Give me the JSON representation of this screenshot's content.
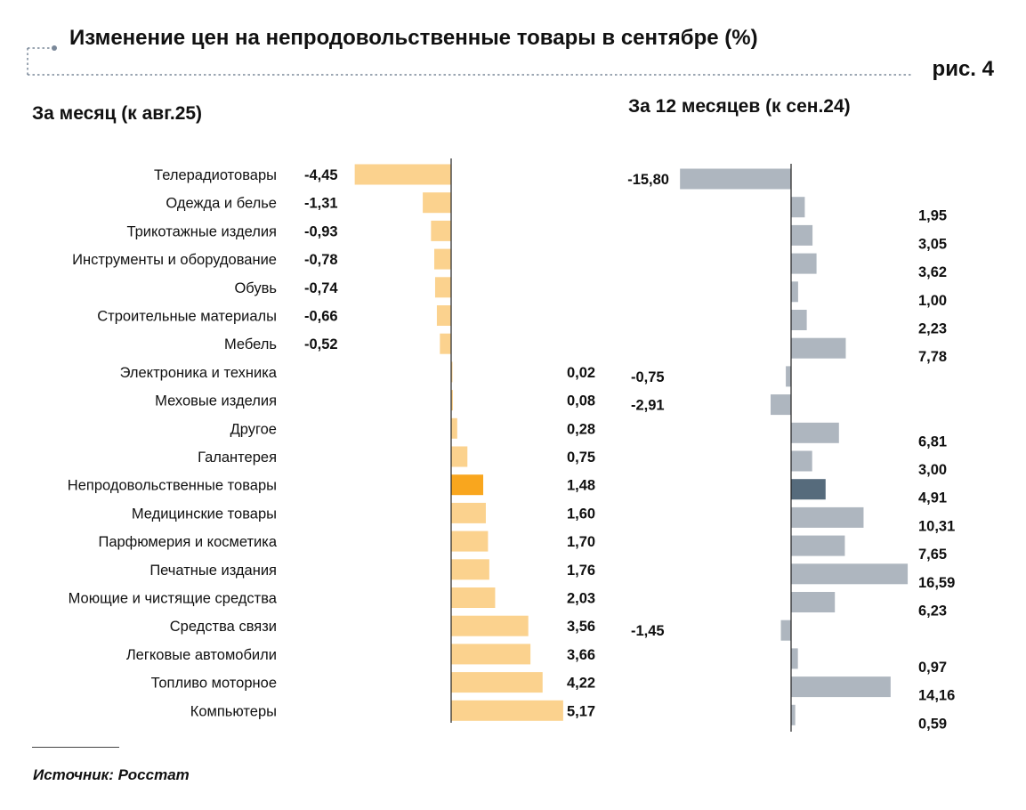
{
  "header": {
    "title": "Изменение цен на непродовольственные товары в сентябре (%)",
    "figure_label": "рис. 4"
  },
  "colors": {
    "month_bar": "#fbd28e",
    "month_highlight": "#f9a61e",
    "year_bar": "#aeb6bf",
    "year_highlight": "#566b7c",
    "frame_dots": "#7a8899"
  },
  "chart_data": [
    {
      "type": "bar",
      "orientation": "horizontal",
      "title": "За месяц (к авг.25)",
      "categories": [
        "Телерадиотовары",
        "Одежда и белье",
        "Трикотажные изделия",
        "Инструменты и оборудование",
        "Обувь",
        "Строительные материалы",
        "Мебель",
        "Электроника и техника",
        "Меховые изделия",
        "Другое",
        "Галантерея",
        "Непродовольственные товары",
        "Медицинские товары",
        "Парфюмерия и косметика",
        "Печатные издания",
        "Моющие и чистящие средства",
        "Средства связи",
        "Легковые автомобили",
        "Топливо моторное",
        "Компьютеры"
      ],
      "values": [
        -4.45,
        -1.31,
        -0.93,
        -0.78,
        -0.74,
        -0.66,
        -0.52,
        0.02,
        0.08,
        0.28,
        0.75,
        1.48,
        1.6,
        1.7,
        1.76,
        2.03,
        3.56,
        3.66,
        4.22,
        5.17
      ],
      "labels": [
        "-4,45",
        "-1,31",
        "-0,93",
        "-0,78",
        "-0,74",
        "-0,66",
        "-0,52",
        "0,02",
        "0,08",
        "0,28",
        "0,75",
        "1,48",
        "1,60",
        "1,70",
        "1,76",
        "2,03",
        "3,56",
        "3,66",
        "4,22",
        "5,17"
      ],
      "highlight": "Непродовольственные товары"
    },
    {
      "type": "bar",
      "orientation": "horizontal",
      "title": "За 12 месяцев (к сен.24)",
      "categories": [
        "Телерадиотовары",
        "Одежда и белье",
        "Трикотажные изделия",
        "Инструменты и оборудование",
        "Обувь",
        "Строительные материалы",
        "Мебель",
        "Электроника и техника",
        "Меховые изделия",
        "Другое",
        "Галантерея",
        "Непродовольственные товары",
        "Медицинские товары",
        "Парфюмерия и косметика",
        "Печатные издания",
        "Моющие и чистящие средства",
        "Средства связи",
        "Легковые автомобили",
        "Топливо моторное",
        "Компьютеры"
      ],
      "values": [
        -15.8,
        1.95,
        3.05,
        3.62,
        1.0,
        2.23,
        7.78,
        -0.75,
        -2.91,
        6.81,
        3.0,
        4.91,
        10.31,
        7.65,
        16.59,
        6.23,
        -1.45,
        0.97,
        14.16,
        0.59
      ],
      "labels": [
        "-15,80",
        "1,95",
        "3,05",
        "3,62",
        "1,00",
        "2,23",
        "7,78",
        "-0,75",
        "-2,91",
        "6,81",
        "3,00",
        "4,91",
        "10,31",
        "7,65",
        "16,59",
        "6,23",
        "-1,45",
        "0,97",
        "14,16",
        "0,59"
      ],
      "highlight": "Непродовольственные товары"
    }
  ],
  "footer": {
    "source": "Источник: Росстат"
  }
}
